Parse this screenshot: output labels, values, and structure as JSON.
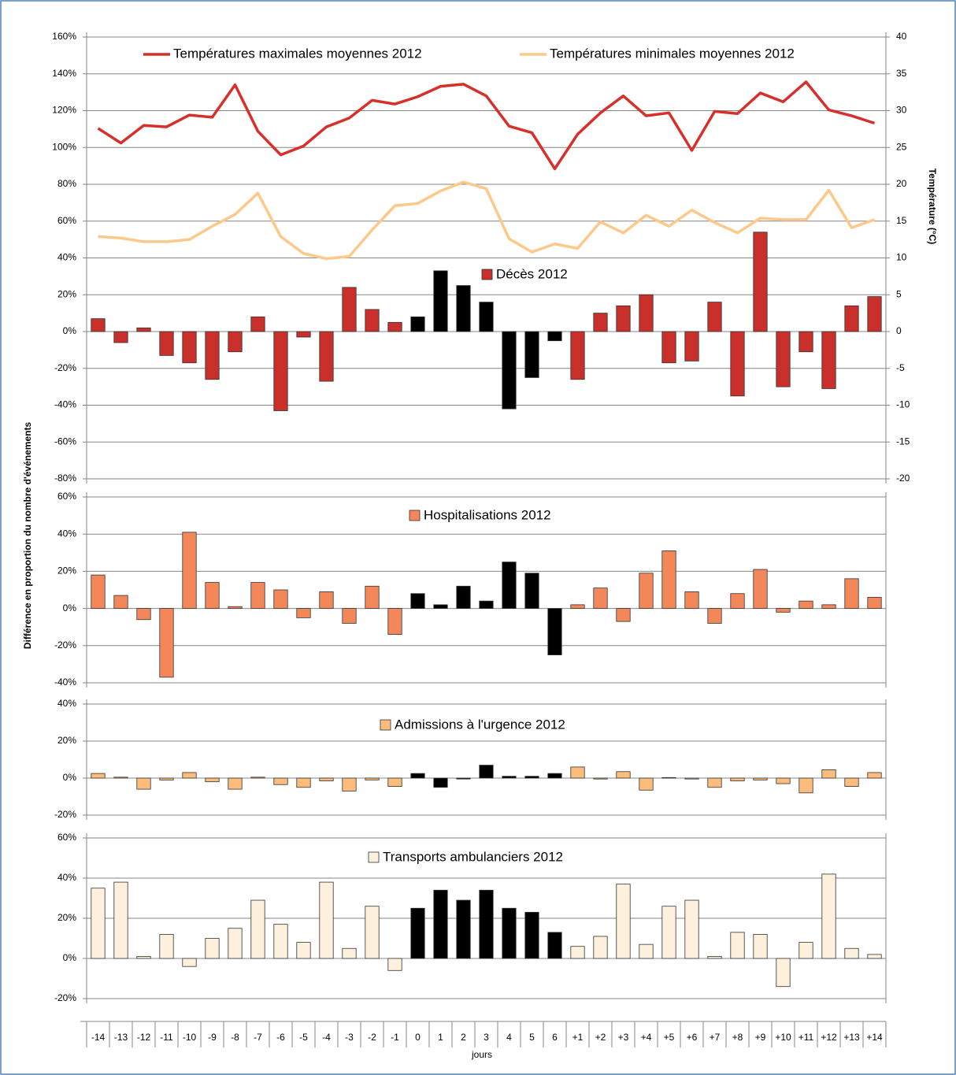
{
  "chart_data": {
    "type": "panels",
    "xlabel": "jours",
    "ylabel": "Différence en proportion du nombre d'événements",
    "y2label": "Température (°C)",
    "categories": [
      "-14",
      "-13",
      "-12",
      "-11",
      "-10",
      "-9",
      "-8",
      "-7",
      "-6",
      "-5",
      "-4",
      "-3",
      "-2",
      "-1",
      "0",
      "1",
      "2",
      "3",
      "4",
      "5",
      "6",
      "+1",
      "+2",
      "+3",
      "+4",
      "+5",
      "+6",
      "+7",
      "+8",
      "+9",
      "+10",
      "+11",
      "+12",
      "+13",
      "+14"
    ],
    "highlight_from": "0",
    "highlight_to": "6",
    "highlight_color": "#000000",
    "grid": true,
    "panels": [
      {
        "ylim": [
          -80,
          160
        ],
        "yticks": [
          {
            "value": -80,
            "label": "-80%"
          },
          {
            "value": -60,
            "label": "-60%"
          },
          {
            "value": -40,
            "label": "-40%"
          },
          {
            "value": -20,
            "label": "-20%"
          },
          {
            "value": 0,
            "label": "0%"
          },
          {
            "value": 20,
            "label": "20%"
          },
          {
            "value": 40,
            "label": "40%"
          },
          {
            "value": 60,
            "label": "60%"
          },
          {
            "value": 80,
            "label": "80%"
          },
          {
            "value": 100,
            "label": "100%"
          },
          {
            "value": 120,
            "label": "120%"
          },
          {
            "value": 140,
            "label": "140%"
          },
          {
            "value": 160,
            "label": "160%"
          }
        ],
        "y2lim": [
          -20,
          40
        ],
        "y2ticks": [
          -20,
          -15,
          -10,
          -5,
          0,
          5,
          10,
          15,
          20,
          25,
          30,
          35,
          40
        ],
        "series": [
          {
            "name": "Températures maximales moyennes 2012",
            "type": "line",
            "axis": "y2",
            "color": "#d7302b",
            "values": [
              27.6,
              25.6,
              28.0,
              27.8,
              29.4,
              29.1,
              33.5,
              27.2,
              24.0,
              25.2,
              27.8,
              29.0,
              31.4,
              30.9,
              31.9,
              33.3,
              33.6,
              32.0,
              27.9,
              27.0,
              22.1,
              26.8,
              29.7,
              32.0,
              29.3,
              29.7,
              24.6,
              29.9,
              29.6,
              32.4,
              31.2,
              33.9,
              30.1,
              29.3,
              28.3
            ]
          },
          {
            "name": "Températures minimales moyennes 2012",
            "type": "line",
            "axis": "y2",
            "color": "#fcc98a",
            "values": [
              12.9,
              12.7,
              12.2,
              12.2,
              12.5,
              14.3,
              15.9,
              18.8,
              12.9,
              10.6,
              9.9,
              10.2,
              13.8,
              17.1,
              17.4,
              19.1,
              20.3,
              19.4,
              12.6,
              10.8,
              11.9,
              11.3,
              14.9,
              13.4,
              15.8,
              14.3,
              16.5,
              14.8,
              13.4,
              15.4,
              15.2,
              15.2,
              19.2,
              14.1,
              15.2
            ]
          },
          {
            "name": "Décès 2012",
            "type": "bar",
            "color": "#c9302c",
            "values": [
              7,
              -6,
              2,
              -13,
              -17,
              -26,
              -11,
              8,
              -43,
              -3,
              -27,
              24,
              12,
              5,
              8,
              33,
              25,
              16,
              -42,
              -25,
              -5,
              -26,
              10,
              14,
              20,
              -17,
              -16,
              16,
              -35,
              54,
              -30,
              -11,
              -31,
              14,
              19
            ]
          }
        ]
      },
      {
        "ylim": [
          -40,
          60
        ],
        "yticks": [
          {
            "value": -40,
            "label": "-40%"
          },
          {
            "value": -20,
            "label": "-20%"
          },
          {
            "value": 0,
            "label": "0%"
          },
          {
            "value": 20,
            "label": "20%"
          },
          {
            "value": 40,
            "label": "40%"
          },
          {
            "value": 60,
            "label": "60%"
          }
        ],
        "series": [
          {
            "name": "Hospitalisations 2012",
            "type": "bar",
            "color": "#f4875a",
            "values": [
              18,
              7,
              -6,
              -37,
              41,
              14,
              1,
              14,
              10,
              -5,
              9,
              -8,
              12,
              -14,
              8,
              2,
              12,
              4,
              25,
              19,
              -25,
              2,
              11,
              -7,
              19,
              31,
              9,
              -8,
              8,
              21,
              -2,
              4,
              2,
              16,
              6
            ]
          }
        ]
      },
      {
        "ylim": [
          -20,
          40
        ],
        "yticks": [
          {
            "value": -20,
            "label": "-20%"
          },
          {
            "value": 0,
            "label": "0%"
          },
          {
            "value": 20,
            "label": "20%"
          },
          {
            "value": 40,
            "label": "40%"
          }
        ],
        "series": [
          {
            "name": "Admissions à l'urgence 2012",
            "type": "bar",
            "color": "#fbbc7c",
            "values": [
              2.5,
              0.5,
              -6,
              -1,
              3,
              -2,
              -6,
              0.5,
              -3.5,
              -5,
              -1.5,
              -7,
              -1,
              -4.5,
              2.5,
              -5,
              -0.5,
              7,
              1,
              1,
              2.5,
              6,
              -0.5,
              3.5,
              -6.5,
              0.3,
              -0.5,
              -5,
              -1.5,
              -1,
              -3,
              -8,
              4.5,
              -4.5,
              3
            ]
          }
        ]
      },
      {
        "ylim": [
          -20,
          60
        ],
        "yticks": [
          {
            "value": -20,
            "label": "-20%"
          },
          {
            "value": 0,
            "label": "0%"
          },
          {
            "value": 20,
            "label": "20%"
          },
          {
            "value": 40,
            "label": "40%"
          },
          {
            "value": 60,
            "label": "60%"
          }
        ],
        "series": [
          {
            "name": "Transports ambulanciers 2012",
            "type": "bar",
            "color": "#fdf0dc",
            "values": [
              35,
              38,
              1,
              12,
              -4,
              10,
              15,
              29,
              17,
              8,
              38,
              5,
              26,
              -6,
              25,
              34,
              29,
              34,
              25,
              23,
              13,
              6,
              11,
              37,
              7,
              26,
              29,
              1,
              13,
              12,
              -14,
              8,
              42,
              5,
              2
            ]
          }
        ]
      }
    ]
  }
}
